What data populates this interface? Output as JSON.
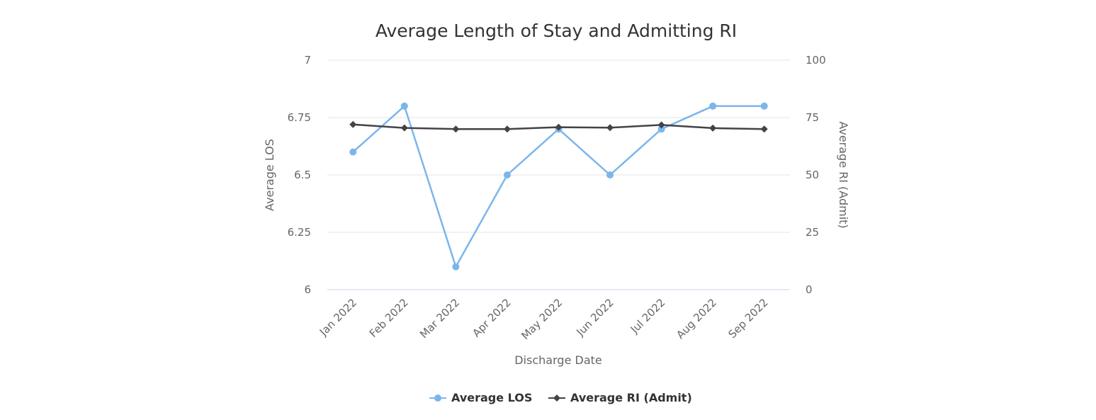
{
  "chart_data": {
    "type": "line",
    "title": "Average Length of Stay and Admitting RI",
    "xlabel": "Discharge Date",
    "categories": [
      "Jan 2022",
      "Feb 2022",
      "Mar 2022",
      "Apr 2022",
      "May 2022",
      "Jun 2022",
      "Jul 2022",
      "Aug 2022",
      "Sep 2022"
    ],
    "y_left": {
      "label": "Average LOS",
      "range": [
        6,
        7
      ],
      "ticks": [
        "6",
        "6.25",
        "6.5",
        "6.75",
        "7"
      ],
      "tick_values": [
        6,
        6.25,
        6.5,
        6.75,
        7
      ]
    },
    "y_right": {
      "label": "Average RI (Admit)",
      "range": [
        0,
        100
      ],
      "ticks": [
        "0",
        "25",
        "50",
        "75",
        "100"
      ],
      "tick_values": [
        0,
        25,
        50,
        75,
        100
      ]
    },
    "series": [
      {
        "name": "Average LOS",
        "axis": "left",
        "color": "#7cb5ec",
        "marker": "circle",
        "values": [
          6.6,
          6.8,
          6.1,
          6.5,
          6.7,
          6.5,
          6.7,
          6.8,
          6.8
        ]
      },
      {
        "name": "Average RI (Admit)",
        "axis": "right",
        "color": "#434348",
        "marker": "diamond",
        "values": [
          72,
          70.5,
          70,
          70,
          70.8,
          70.6,
          71.8,
          70.4,
          70
        ]
      }
    ],
    "grid": true,
    "legend_position": "bottom-center"
  }
}
